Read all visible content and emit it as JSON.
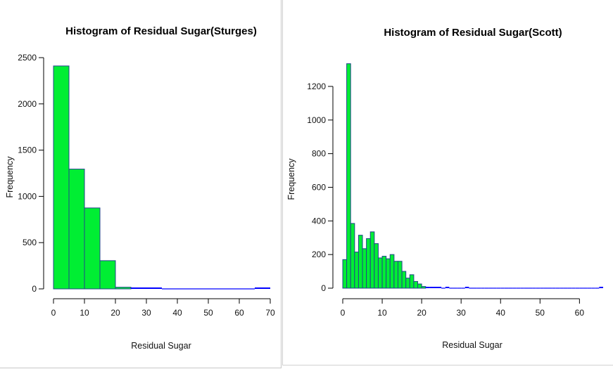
{
  "colors": {
    "bar_fill": "#00ee33",
    "bar_stroke": "#22458a",
    "tail": "#0000ff",
    "axis": "#000000"
  },
  "chart_data": [
    {
      "type": "bar",
      "title": "Histogram of Residual Sugar(Sturges)",
      "xlabel": "Residual Sugar",
      "ylabel": "Frequency",
      "xlim": [
        0,
        70
      ],
      "ylim": [
        0,
        2500
      ],
      "xticks": [
        0,
        10,
        20,
        30,
        40,
        50,
        60,
        70
      ],
      "yticks": [
        0,
        500,
        1000,
        1500,
        2000,
        2500
      ],
      "bin_edges": [
        0,
        5,
        10,
        15,
        20,
        25,
        30,
        35,
        40,
        45,
        50,
        55,
        60,
        65,
        70
      ],
      "values": [
        2410,
        1295,
        875,
        305,
        18,
        9,
        6,
        0,
        0,
        0,
        0,
        0,
        0,
        1
      ]
    },
    {
      "type": "bar",
      "title": "Histogram of Residual Sugar(Scott)",
      "xlabel": "Residual Sugar",
      "ylabel": "Frequency",
      "xlim": [
        0,
        66
      ],
      "ylim": [
        0,
        1300
      ],
      "xticks": [
        0,
        10,
        20,
        30,
        40,
        50,
        60
      ],
      "yticks": [
        0,
        200,
        400,
        600,
        800,
        1000,
        1200
      ],
      "bin_width": 1,
      "values": [
        170,
        1335,
        385,
        215,
        315,
        235,
        295,
        335,
        265,
        180,
        190,
        175,
        200,
        160,
        160,
        100,
        60,
        80,
        40,
        25,
        10,
        5,
        5,
        3,
        2,
        0,
        2,
        0,
        0,
        0,
        0,
        2,
        0,
        0,
        0,
        0,
        0,
        0,
        0,
        0,
        0,
        0,
        0,
        0,
        0,
        0,
        0,
        0,
        0,
        0,
        0,
        0,
        0,
        0,
        0,
        0,
        0,
        0,
        0,
        0,
        0,
        0,
        0,
        0,
        0,
        1
      ]
    }
  ]
}
